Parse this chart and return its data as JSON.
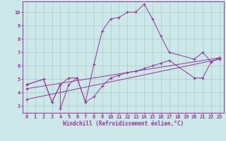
{
  "xlabel": "Windchill (Refroidissement éolien,°C)",
  "bg_color": "#cce8e8",
  "grid_color": "#aacccc",
  "line_color": "#993399",
  "xlim": [
    -0.5,
    23.5
  ],
  "ylim": [
    2.5,
    10.8
  ],
  "xticks": [
    0,
    1,
    2,
    3,
    4,
    5,
    6,
    7,
    8,
    9,
    10,
    11,
    12,
    13,
    14,
    15,
    16,
    17,
    18,
    19,
    20,
    21,
    22,
    23
  ],
  "yticks": [
    3,
    4,
    5,
    6,
    7,
    8,
    9,
    10
  ],
  "series": [
    {
      "x": [
        0,
        2,
        3,
        4,
        5,
        6,
        7,
        8,
        9,
        10,
        11,
        12,
        13,
        14,
        15,
        16,
        17,
        20,
        21,
        22,
        23
      ],
      "y": [
        4.6,
        5.0,
        3.3,
        4.6,
        5.1,
        5.1,
        3.3,
        6.1,
        8.6,
        9.5,
        9.6,
        10.0,
        10.0,
        10.6,
        9.5,
        8.2,
        7.0,
        6.5,
        7.0,
        6.3,
        6.6
      ]
    },
    {
      "x": [
        0,
        2,
        3,
        4,
        4,
        5,
        6,
        7,
        8,
        9,
        10,
        11,
        12,
        13,
        14,
        15,
        16,
        17,
        20,
        21,
        22,
        23
      ],
      "y": [
        4.6,
        5.0,
        3.3,
        4.6,
        2.8,
        4.6,
        5.1,
        3.3,
        3.7,
        4.5,
        5.1,
        5.3,
        5.5,
        5.6,
        5.8,
        6.0,
        6.2,
        6.4,
        5.1,
        5.1,
        6.3,
        6.6
      ]
    },
    {
      "x": [
        0,
        23
      ],
      "y": [
        4.3,
        6.6
      ]
    },
    {
      "x": [
        0,
        23
      ],
      "y": [
        3.5,
        6.5
      ]
    }
  ]
}
